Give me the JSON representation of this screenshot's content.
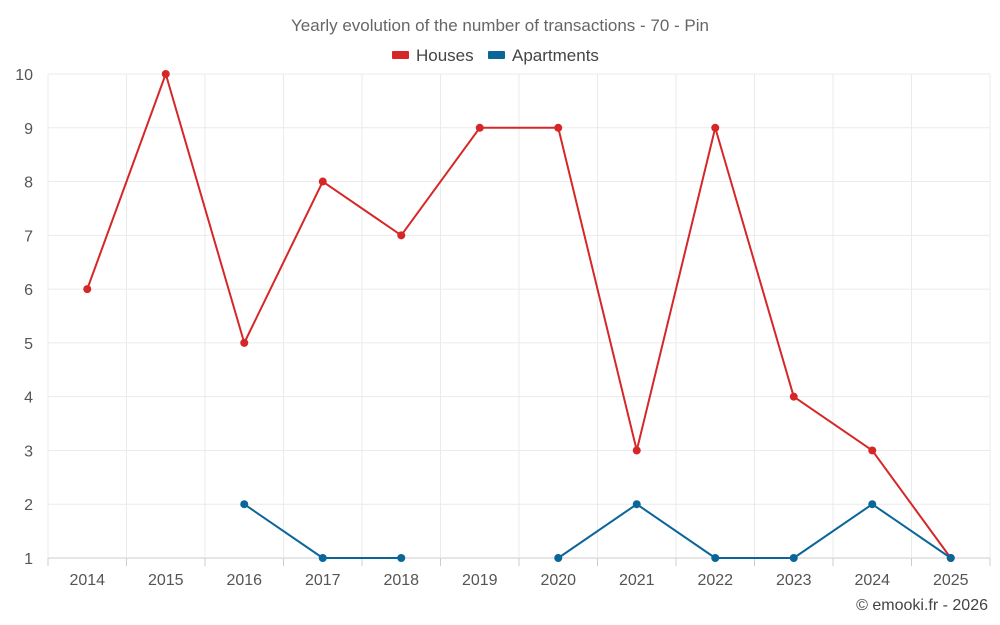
{
  "chart_data": {
    "type": "line",
    "title": "Yearly evolution of the number of transactions - 70 - Pin",
    "categories": [
      "2014",
      "2015",
      "2016",
      "2017",
      "2018",
      "2019",
      "2020",
      "2021",
      "2022",
      "2023",
      "2024",
      "2025"
    ],
    "ylim": [
      1,
      10
    ],
    "yticks": [
      "1",
      "2",
      "3",
      "4",
      "5",
      "6",
      "7",
      "8",
      "9",
      "10"
    ],
    "grid": true,
    "legend_position": "top-center",
    "series": [
      {
        "name": "Houses",
        "color": "#d62728",
        "values": [
          6,
          10,
          5,
          8,
          7,
          9,
          9,
          3,
          9,
          4,
          3,
          1
        ]
      },
      {
        "name": "Apartments",
        "color": "#0a6699",
        "values": [
          null,
          null,
          2,
          1,
          1,
          null,
          1,
          2,
          1,
          1,
          2,
          1
        ]
      }
    ]
  },
  "credit": "© emooki.fr - 2026"
}
